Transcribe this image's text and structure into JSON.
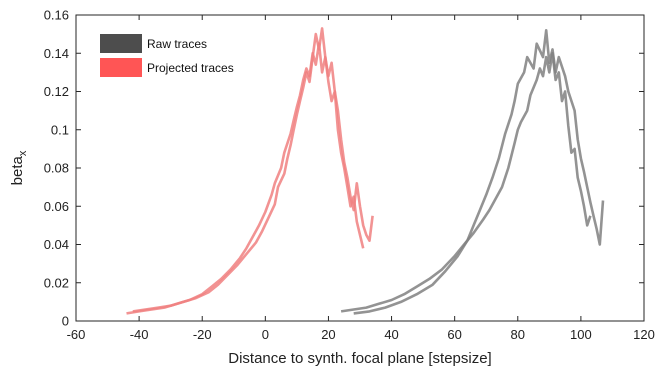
{
  "chart_data": {
    "type": "line",
    "title": "",
    "xlabel": "Distance to synth. focal plane [stepsize]",
    "ylabel": "beta",
    "ylabel_subscript": "x",
    "xlim": [
      -60,
      120
    ],
    "ylim": [
      0,
      0.16
    ],
    "xticks": [
      -60,
      -40,
      -20,
      0,
      20,
      40,
      60,
      80,
      100,
      120
    ],
    "yticks": [
      0,
      0.02,
      0.04,
      0.06,
      0.08,
      0.1,
      0.12,
      0.14,
      0.16
    ],
    "ytick_labels": [
      "0",
      "0.02",
      "0.04",
      "0.06",
      "0.08",
      "0.1",
      "0.12",
      "0.14",
      "0.16"
    ],
    "grid": false,
    "legend_position": "top-left",
    "series": [
      {
        "name": "Raw traces",
        "color": "#808080",
        "legend_color": "#4d4d4d",
        "traces": [
          {
            "x": [
              24,
              28,
              32,
              36,
              40,
              44,
              48,
              52,
              56,
              60,
              63,
              66,
              69,
              71,
              73,
              75,
              77,
              79,
              80,
              81,
              83,
              84,
              86,
              87,
              88,
              89,
              90,
              91,
              92,
              93,
              94,
              95,
              96,
              97,
              98,
              99,
              100,
              101,
              102,
              103
            ],
            "y": [
              0.005,
              0.006,
              0.007,
              0.009,
              0.011,
              0.014,
              0.018,
              0.022,
              0.027,
              0.034,
              0.04,
              0.046,
              0.053,
              0.058,
              0.064,
              0.07,
              0.08,
              0.093,
              0.1,
              0.104,
              0.11,
              0.118,
              0.126,
              0.132,
              0.128,
              0.138,
              0.13,
              0.14,
              0.126,
              0.13,
              0.115,
              0.12,
              0.102,
              0.088,
              0.09,
              0.075,
              0.068,
              0.06,
              0.05,
              0.055
            ]
          },
          {
            "x": [
              28,
              33,
              38,
              43,
              48,
              53,
              57,
              61,
              64,
              66,
              68,
              70,
              72,
              74,
              76,
              78,
              79,
              80,
              82,
              83,
              85,
              86,
              88,
              89,
              90,
              91,
              92,
              93,
              95,
              96,
              98,
              99,
              100,
              101,
              102,
              103,
              104,
              105,
              106,
              107
            ],
            "y": [
              0.004,
              0.005,
              0.007,
              0.01,
              0.014,
              0.019,
              0.026,
              0.034,
              0.042,
              0.05,
              0.058,
              0.066,
              0.075,
              0.085,
              0.098,
              0.108,
              0.115,
              0.124,
              0.13,
              0.138,
              0.132,
              0.145,
              0.138,
              0.152,
              0.135,
              0.142,
              0.13,
              0.138,
              0.128,
              0.12,
              0.11,
              0.095,
              0.085,
              0.078,
              0.07,
              0.062,
              0.055,
              0.048,
              0.04,
              0.063
            ]
          }
        ]
      },
      {
        "name": "Projected traces",
        "color": "#f08080",
        "legend_color": "#ff5555",
        "traces": [
          {
            "x": [
              -44,
              -40,
              -36,
              -32,
              -28,
              -24,
              -20,
              -17,
              -14,
              -11,
              -8,
              -6,
              -4,
              -2,
              0,
              2,
              3,
              5,
              6,
              8,
              9,
              10,
              11,
              12,
              13,
              14,
              15,
              16,
              17,
              18,
              19,
              20,
              21,
              22,
              23,
              24,
              25,
              26,
              27,
              28,
              29,
              30,
              31
            ],
            "y": [
              0.004,
              0.005,
              0.006,
              0.007,
              0.009,
              0.011,
              0.014,
              0.018,
              0.022,
              0.027,
              0.033,
              0.038,
              0.044,
              0.05,
              0.057,
              0.066,
              0.072,
              0.08,
              0.088,
              0.098,
              0.105,
              0.112,
              0.118,
              0.126,
              0.132,
              0.128,
              0.14,
              0.134,
              0.145,
              0.13,
              0.138,
              0.125,
              0.115,
              0.12,
              0.1,
              0.088,
              0.08,
              0.07,
              0.06,
              0.065,
              0.052,
              0.045,
              0.038
            ]
          },
          {
            "x": [
              -42,
              -38,
              -34,
              -30,
              -26,
              -22,
              -18,
              -15,
              -12,
              -9,
              -6,
              -3,
              -1,
              1,
              3,
              4,
              6,
              7,
              8,
              9,
              10,
              11,
              12,
              13,
              14,
              15,
              16,
              17,
              18,
              19,
              20,
              21,
              22,
              23,
              24,
              25,
              26,
              27,
              28,
              29,
              30,
              31,
              32,
              33,
              34
            ],
            "y": [
              0.005,
              0.006,
              0.007,
              0.008,
              0.01,
              0.012,
              0.015,
              0.019,
              0.024,
              0.029,
              0.035,
              0.041,
              0.047,
              0.054,
              0.061,
              0.07,
              0.077,
              0.085,
              0.092,
              0.1,
              0.108,
              0.115,
              0.122,
              0.13,
              0.125,
              0.138,
              0.15,
              0.142,
              0.153,
              0.138,
              0.128,
              0.135,
              0.12,
              0.11,
              0.095,
              0.083,
              0.075,
              0.065,
              0.058,
              0.072,
              0.06,
              0.05,
              0.045,
              0.042,
              0.055
            ]
          }
        ]
      }
    ]
  }
}
